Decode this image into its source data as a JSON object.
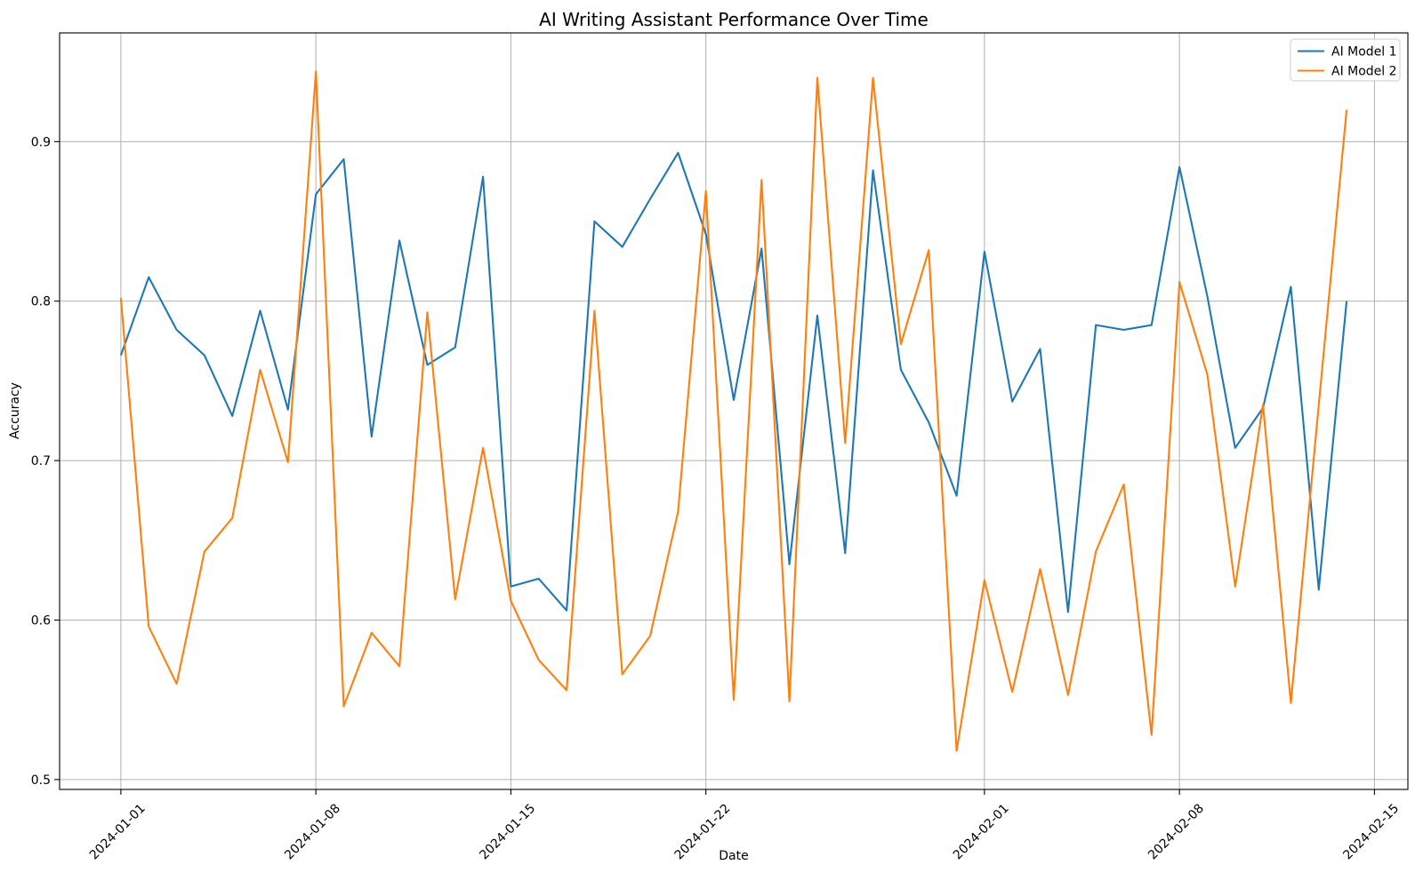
{
  "chart_data": {
    "type": "line",
    "title": "AI Writing Assistant Performance Over Time",
    "xlabel": "Date",
    "ylabel": "Accuracy",
    "x": [
      "2024-01-01",
      "2024-01-02",
      "2024-01-03",
      "2024-01-04",
      "2024-01-05",
      "2024-01-06",
      "2024-01-07",
      "2024-01-08",
      "2024-01-09",
      "2024-01-10",
      "2024-01-11",
      "2024-01-12",
      "2024-01-13",
      "2024-01-14",
      "2024-01-15",
      "2024-01-16",
      "2024-01-17",
      "2024-01-18",
      "2024-01-19",
      "2024-01-20",
      "2024-01-21",
      "2024-01-22",
      "2024-01-23",
      "2024-01-24",
      "2024-01-25",
      "2024-01-26",
      "2024-01-27",
      "2024-01-28",
      "2024-01-29",
      "2024-01-30",
      "2024-01-31",
      "2024-02-01",
      "2024-02-02",
      "2024-02-03",
      "2024-02-04",
      "2024-02-05",
      "2024-02-06",
      "2024-02-07",
      "2024-02-08",
      "2024-02-09",
      "2024-02-10",
      "2024-02-11",
      "2024-02-12",
      "2024-02-13",
      "2024-02-14"
    ],
    "series": [
      {
        "name": "AI Model 1",
        "color": "#1f77b4",
        "values": [
          0.766,
          0.815,
          0.782,
          0.766,
          0.728,
          0.794,
          0.732,
          0.867,
          0.889,
          0.715,
          0.838,
          0.76,
          0.771,
          0.878,
          0.621,
          0.626,
          0.606,
          0.85,
          0.834,
          0.864,
          0.893,
          0.842,
          0.738,
          0.833,
          0.635,
          0.791,
          0.642,
          0.882,
          0.757,
          0.724,
          0.678,
          0.831,
          0.737,
          0.77,
          0.605,
          0.785,
          0.782,
          0.785,
          0.884,
          0.803,
          0.708,
          0.733,
          0.809,
          0.619,
          0.8
        ]
      },
      {
        "name": "AI Model 2",
        "color": "#ff7f0e",
        "values": [
          0.802,
          0.596,
          0.56,
          0.643,
          0.664,
          0.757,
          0.699,
          0.944,
          0.546,
          0.592,
          0.571,
          0.793,
          0.613,
          0.708,
          0.612,
          0.575,
          0.556,
          0.794,
          0.566,
          0.59,
          0.668,
          0.869,
          0.55,
          0.876,
          0.549,
          0.94,
          0.711,
          0.94,
          0.773,
          0.832,
          0.518,
          0.625,
          0.555,
          0.632,
          0.553,
          0.643,
          0.685,
          0.528,
          0.812,
          0.754,
          0.621,
          0.735,
          0.548,
          0.735,
          0.92
        ]
      }
    ],
    "x_ticks": [
      "2024-01-01",
      "2024-01-08",
      "2024-01-15",
      "2024-01-22",
      "2024-02-01",
      "2024-02-08",
      "2024-02-15"
    ],
    "y_ticks": [
      "0.5",
      "0.6",
      "0.7",
      "0.8",
      "0.9"
    ],
    "ylim": [
      0.4938,
      0.9682
    ],
    "xlim_days": [
      -2.2,
      46.2
    ],
    "grid": true,
    "grid_color": "#b0b0b0",
    "spine_color": "#000000",
    "background": "#ffffff",
    "legend_position": "upper right",
    "legend_edge_color": "#cccccc"
  }
}
